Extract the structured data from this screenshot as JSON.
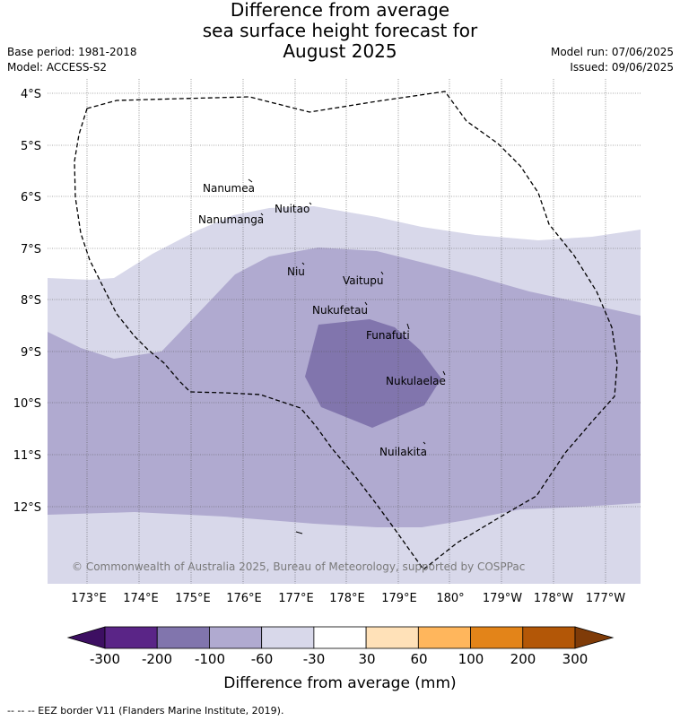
{
  "title": {
    "line1": "Difference from average",
    "line2": "sea surface height forecast for",
    "line3": "August 2025"
  },
  "meta": {
    "base_period": "Base period: 1981-2018",
    "model": "Model: ACCESS-S2",
    "model_run": "Model run: 07/06/2025",
    "issued": "Issued: 09/06/2025"
  },
  "map": {
    "lon_labels": [
      "173°E",
      "174°E",
      "175°E",
      "176°E",
      "177°E",
      "178°E",
      "179°E",
      "180°",
      "179°W",
      "178°W",
      "177°W"
    ],
    "lat_labels": [
      "4°S",
      "5°S",
      "6°S",
      "7°S",
      "8°S",
      "9°S",
      "10°S",
      "11°S",
      "12°S"
    ],
    "islands": [
      {
        "name": "Nanumea"
      },
      {
        "name": "Nuitao"
      },
      {
        "name": "Nanumanga"
      },
      {
        "name": "Niu"
      },
      {
        "name": "Vaitupu"
      },
      {
        "name": "Nukufetau"
      },
      {
        "name": "Funafuti"
      },
      {
        "name": "Nukulaelae"
      },
      {
        "name": "Nuilakita"
      }
    ],
    "copyright": "© Commonwealth of Australia 2025, Bureau of Meteorology, supported by COSPPac",
    "colors": {
      "band_60_30": "#d8d8ea",
      "band_100_60": "#b0aad0",
      "band_200_100": "#8175ad",
      "border": "#000000"
    }
  },
  "colorbar": {
    "ticks": [
      "-300",
      "-200",
      "-100",
      "-60",
      "-30",
      "30",
      "60",
      "100",
      "200",
      "300"
    ],
    "label": "Difference from average (mm)",
    "colors": [
      "#5a2587",
      "#8175ad",
      "#b0aad0",
      "#d8d8ea",
      "#ffffff",
      "#ffe1b8",
      "#ffb65c",
      "#e38419",
      "#b35707"
    ],
    "extend_low_color": "#3d0f62",
    "extend_high_color": "#7f3b08"
  },
  "footer": {
    "legend": "-- -- -- EEZ border V11 (Flanders Marine Institute, 2019)."
  }
}
